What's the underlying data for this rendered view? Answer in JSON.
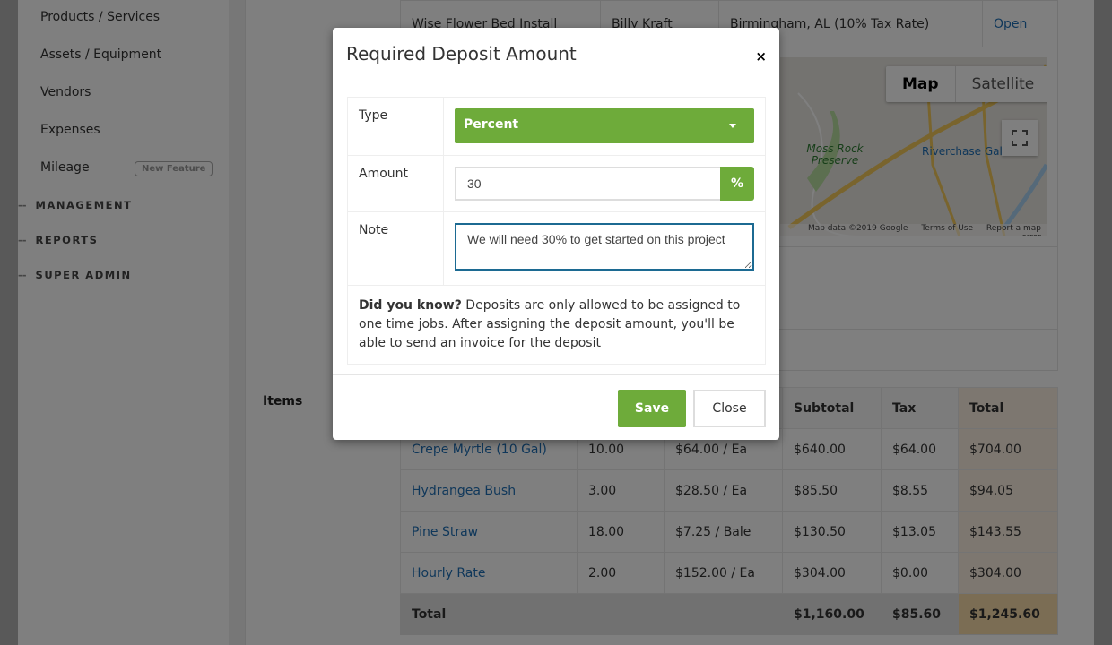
{
  "sidebar": {
    "items": [
      {
        "label": "Products / Services"
      },
      {
        "label": "Assets / Equipment"
      },
      {
        "label": "Vendors"
      },
      {
        "label": "Expenses"
      },
      {
        "label": "Mileage",
        "badge": "New Feature"
      }
    ],
    "sections": [
      {
        "label": "MANAGEMENT"
      },
      {
        "label": "REPORTS"
      },
      {
        "label": "SUPER ADMIN"
      }
    ]
  },
  "job": {
    "name": "Wise Flower Bed Install",
    "customer": "Billy Kraft",
    "location": "Birmingham, AL (10% Tax Rate)",
    "action": "Open"
  },
  "map": {
    "map_label": "Map",
    "satellite_label": "Satellite",
    "places": [
      "Moss Rock Preserve",
      "Riverchase Gal"
    ],
    "footer": [
      "Map data ©2019 Google",
      "Terms of Use",
      "Report a map error"
    ]
  },
  "items": {
    "label": "Items",
    "headers": [
      "Subtotal",
      "Tax",
      "Total"
    ],
    "rows": [
      {
        "name": "Crepe Myrtle (10 Gal)",
        "qty": "10.00",
        "rate": "$64.00 / Ea",
        "subtotal": "$640.00",
        "tax": "$64.00",
        "total": "$704.00"
      },
      {
        "name": "Hydrangea Bush",
        "qty": "3.00",
        "rate": "$28.50 / Ea",
        "subtotal": "$85.50",
        "tax": "$8.55",
        "total": "$94.05"
      },
      {
        "name": "Pine Straw",
        "qty": "18.00",
        "rate": "$7.25 / Bale",
        "subtotal": "$130.50",
        "tax": "$13.05",
        "total": "$143.55"
      },
      {
        "name": "Hourly Rate",
        "qty": "2.00",
        "rate": "$152.00 / Ea",
        "subtotal": "$304.00",
        "tax": "$0.00",
        "total": "$304.00"
      }
    ],
    "totals": {
      "label": "Total",
      "subtotal": "$1,160.00",
      "tax": "$85.60",
      "total": "$1,245.60"
    }
  },
  "modal": {
    "title": "Required Deposit Amount",
    "close_icon": "×",
    "type_label": "Type",
    "type_value": "Percent",
    "amount_label": "Amount",
    "amount_value": "30",
    "amount_unit": "%",
    "note_label": "Note",
    "note_value": "We will need 30% to get started on this project",
    "info_bold": "Did you know?",
    "info_text": " Deposits are only allowed to be assigned to one time jobs. After assigning the deposit amount, you'll be able to send an invoice for the deposit",
    "save_label": "Save",
    "close_label": "Close"
  },
  "colors": {
    "accent": "#6eab3a",
    "link": "#1f6fb5",
    "focus": "#1c6a92"
  }
}
